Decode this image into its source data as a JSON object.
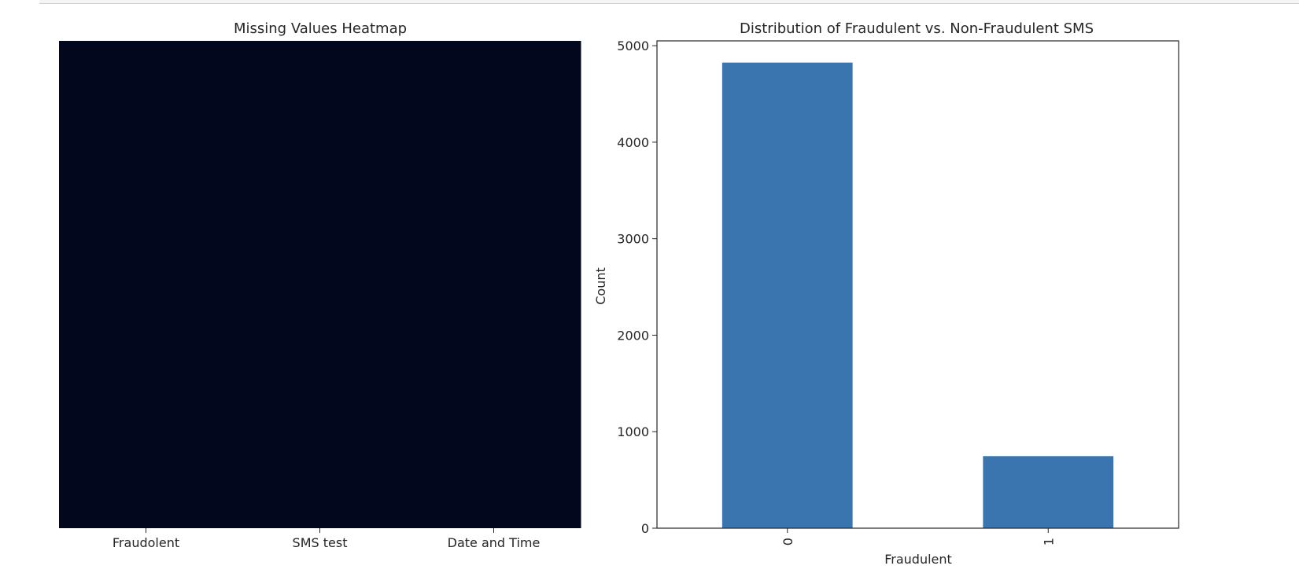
{
  "chart_data": [
    {
      "type": "heatmap",
      "title": "Missing Values Heatmap",
      "columns": [
        "Fraudolent",
        "SMS test",
        "Date and Time"
      ],
      "missing_fraction": [
        0,
        0,
        0
      ],
      "color_empty": "#03071e"
    },
    {
      "type": "bar",
      "title": "Distribution of Fraudulent vs. Non-Fraudulent SMS",
      "categories": [
        "0",
        "1"
      ],
      "values": [
        4825,
        747
      ],
      "xlabel": "Fraudulent",
      "ylabel": "Count",
      "ylim": [
        0,
        5050
      ],
      "yticks": [
        0,
        1000,
        2000,
        3000,
        4000,
        5000
      ],
      "ytick_labels": [
        "0",
        "1000",
        "2000",
        "3000",
        "4000",
        "5000"
      ],
      "bar_color": "#3a75af",
      "grid": false
    }
  ]
}
